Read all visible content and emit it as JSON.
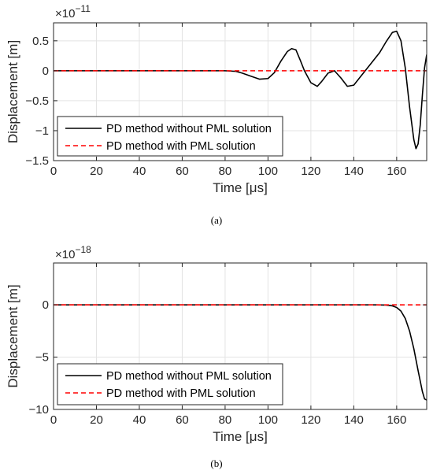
{
  "chart_data": [
    {
      "type": "line",
      "caption": "(a)",
      "xlabel": "Time [μs]",
      "ylabel": "Displacement [m]",
      "y_exponent_base": "×10",
      "y_exponent": "−11",
      "xlim": [
        0,
        174
      ],
      "ylim": [
        -1.5,
        0.8
      ],
      "x_ticks": [
        0,
        20,
        40,
        60,
        80,
        100,
        120,
        140,
        160
      ],
      "x_tick_labels": [
        "0",
        "20",
        "40",
        "60",
        "80",
        "100",
        "120",
        "140",
        "160"
      ],
      "y_ticks": [
        -1.5,
        -1,
        -0.5,
        0,
        0.5
      ],
      "y_tick_labels": [
        "−1.5",
        "−1",
        "−0.5",
        "0",
        "0.5"
      ],
      "grid": true,
      "legend_position": "bottom-left",
      "series": [
        {
          "name": "PD method without PML solution",
          "color": "#000000",
          "dash": "solid",
          "x": [
            0,
            20,
            40,
            60,
            75,
            80,
            85,
            88,
            92,
            96,
            100,
            103,
            106,
            109,
            111,
            113,
            115,
            117,
            120,
            123,
            125,
            128,
            131,
            134,
            137,
            140,
            144,
            148,
            152,
            155,
            158,
            160,
            162,
            164,
            166,
            168,
            169,
            170,
            171,
            172,
            173,
            174
          ],
          "y": [
            0,
            0,
            0,
            0,
            0,
            0,
            -0.01,
            -0.04,
            -0.09,
            -0.14,
            -0.13,
            -0.03,
            0.16,
            0.32,
            0.37,
            0.35,
            0.18,
            0,
            -0.2,
            -0.26,
            -0.18,
            -0.04,
            0,
            -0.12,
            -0.26,
            -0.24,
            -0.06,
            0.12,
            0.3,
            0.48,
            0.64,
            0.66,
            0.5,
            0.05,
            -0.6,
            -1.15,
            -1.3,
            -1.22,
            -0.9,
            -0.4,
            0.05,
            0.27
          ]
        },
        {
          "name": "PD method with PML solution",
          "color": "#ff0000",
          "dash": "dashed",
          "x": [
            0,
            174
          ],
          "y": [
            0,
            0
          ]
        }
      ]
    },
    {
      "type": "line",
      "caption": "(b)",
      "xlabel": "Time [μs]",
      "ylabel": "Displacement [m]",
      "y_exponent_base": "×10",
      "y_exponent": "−18",
      "xlim": [
        0,
        174
      ],
      "ylim": [
        -10,
        4
      ],
      "x_ticks": [
        0,
        20,
        40,
        60,
        80,
        100,
        120,
        140,
        160
      ],
      "x_tick_labels": [
        "0",
        "20",
        "40",
        "60",
        "80",
        "100",
        "120",
        "140",
        "160"
      ],
      "y_ticks": [
        -10,
        -5,
        0
      ],
      "y_tick_labels": [
        "−10",
        "−5",
        "0"
      ],
      "grid": true,
      "legend_position": "bottom-left",
      "series": [
        {
          "name": "PD method without PML solution",
          "color": "#000000",
          "dash": "solid",
          "x": [
            0,
            40,
            80,
            120,
            150,
            155,
            158,
            160,
            162,
            164,
            166,
            168,
            170,
            172,
            173,
            174
          ],
          "y": [
            0,
            0,
            0,
            0,
            0,
            -0.02,
            -0.1,
            -0.25,
            -0.6,
            -1.3,
            -2.5,
            -4.2,
            -6.3,
            -8.3,
            -9.0,
            -9.1
          ]
        },
        {
          "name": "PD method with PML solution",
          "color": "#ff0000",
          "dash": "dashed",
          "x": [
            0,
            174
          ],
          "y": [
            0,
            0
          ]
        }
      ]
    }
  ]
}
